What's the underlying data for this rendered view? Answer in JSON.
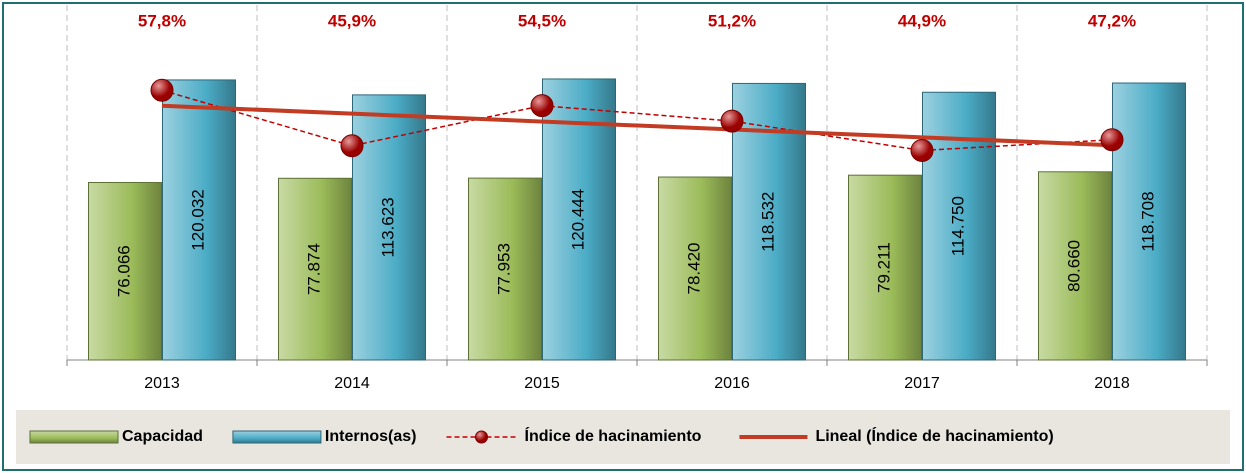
{
  "chart_data": {
    "type": "bar",
    "categories": [
      "2013",
      "2014",
      "2015",
      "2016",
      "2017",
      "2018"
    ],
    "series": [
      {
        "name": "Capacidad",
        "color": "#9bbb59",
        "values": [
          76066,
          77874,
          77953,
          78420,
          79211,
          80660
        ],
        "value_labels": [
          "76.066",
          "77.874",
          "77.953",
          "78.420",
          "79.211",
          "80.660"
        ]
      },
      {
        "name": "Internos(as)",
        "color": "#4bacc6",
        "values": [
          120032,
          113623,
          120444,
          118532,
          114750,
          118708
        ],
        "value_labels": [
          "120.032",
          "113.623",
          "120.444",
          "118.532",
          "114.750",
          "118.708"
        ]
      },
      {
        "name": "Índice de hacinamiento",
        "type": "line",
        "axis": "y2",
        "color": "#c00000",
        "values": [
          57.8,
          45.9,
          54.5,
          51.2,
          44.9,
          47.2
        ],
        "value_labels": [
          "57,8%",
          "45,9%",
          "54,5%",
          "51,2%",
          "44,9%",
          "47,2%"
        ]
      }
    ],
    "trendline": {
      "name": "Lineal (Índice de hacinamiento)",
      "color": "#c23b22"
    },
    "ylim": [
      0,
      150000
    ],
    "y2lim": [
      0,
      75
    ]
  }
}
